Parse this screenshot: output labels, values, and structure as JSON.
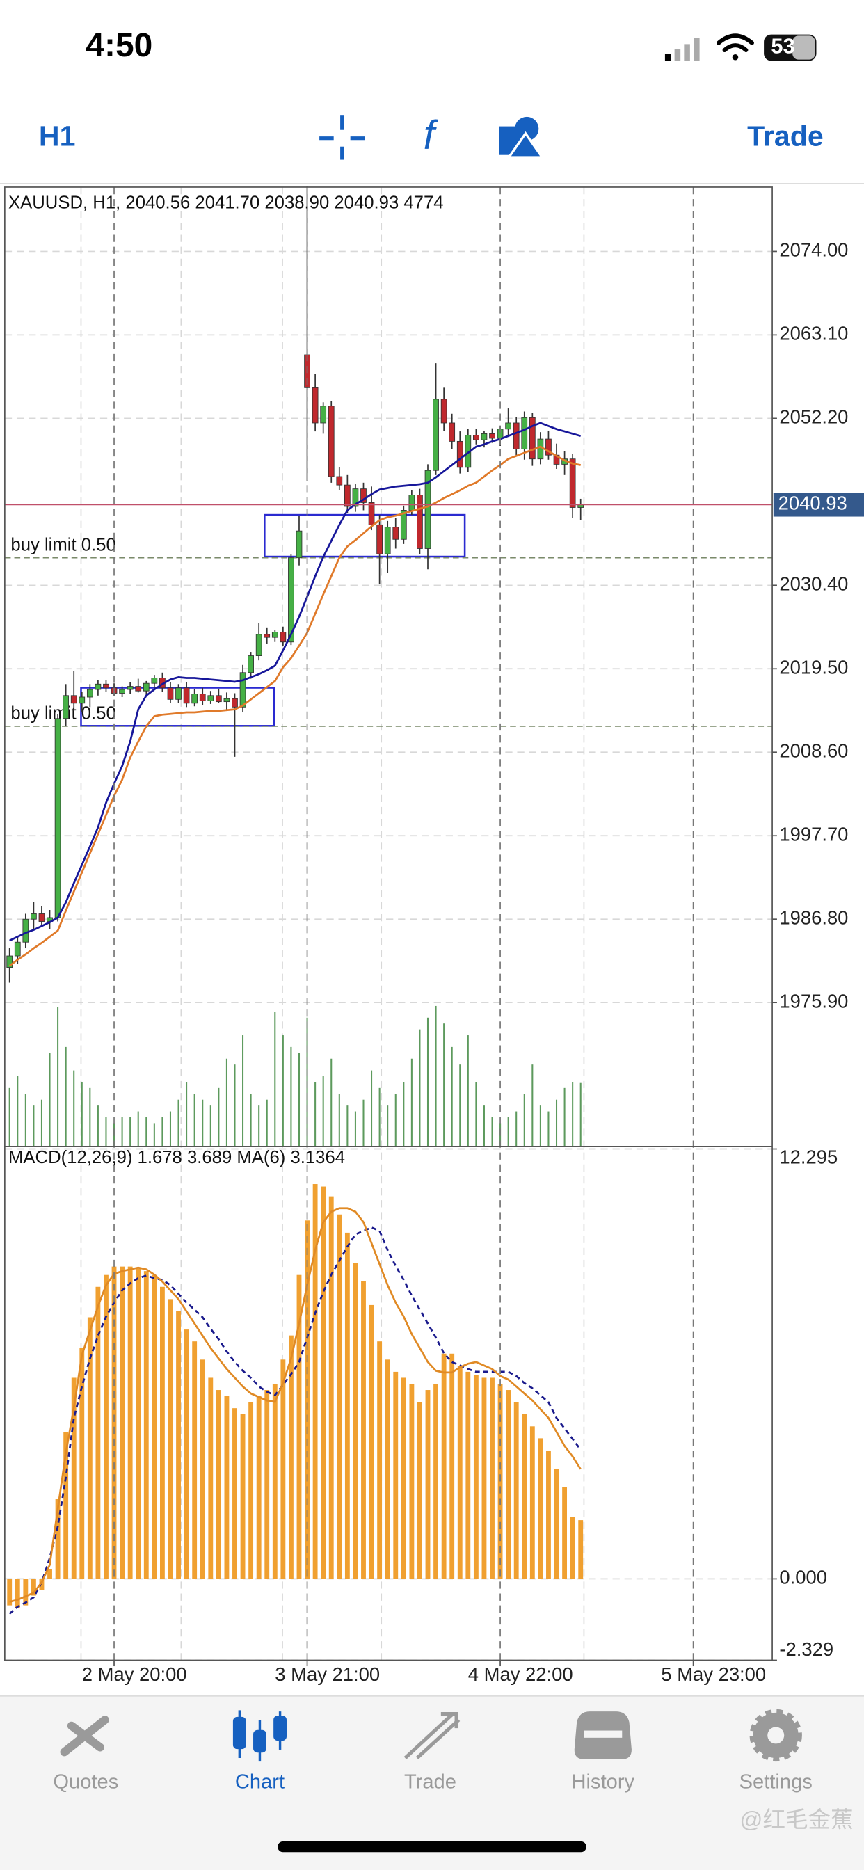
{
  "status_bar": {
    "time": "4:50",
    "battery": "53"
  },
  "toolbar": {
    "timeframe": "H1",
    "trade": "Trade"
  },
  "chart_data": [
    {
      "type": "candlestick",
      "legend": "XAUUSD, H1, 2040.56 2041.70 2038.90 2040.93 4774",
      "up_color": "#45b045",
      "down_color": "#c0282d",
      "volume_color": "#5d9a5d",
      "ylim": [
        1957.1,
        2082.4
      ],
      "yticks": [
        {
          "value": 2074,
          "label": "2074.00"
        },
        {
          "value": 2063.1,
          "label": "2063.10"
        },
        {
          "value": 2052.2,
          "label": "2052.20"
        },
        {
          "value": 2030.4,
          "label": "2030.40"
        },
        {
          "value": 2019.5,
          "label": "2019.50"
        },
        {
          "value": 2008.6,
          "label": "2008.60"
        },
        {
          "value": 1997.7,
          "label": "1997.70"
        },
        {
          "value": 1986.8,
          "label": "1986.80"
        },
        {
          "value": 1975.9,
          "label": "1975.90"
        }
      ],
      "grid": true,
      "price_line_color": "#c0506a",
      "price_box_color": "#34598c",
      "open": [
        1980.5,
        1982.0,
        1983.8,
        1986.8,
        1987.5,
        1986.5,
        1987.0,
        2013.0,
        2016.0,
        2015.0,
        2015.8,
        2016.8,
        2017.5,
        2017.0,
        2016.3,
        2016.8,
        2017.2,
        2016.6,
        2017.6,
        2018.3,
        2017.0,
        2015.5,
        2017.0,
        2015.0,
        2016.2,
        2015.3,
        2016.0,
        2015.2,
        2015.6,
        2014.5,
        2019.0,
        2021.2,
        2024.0,
        2023.6,
        2024.3,
        2023.0,
        2034.0,
        2060.5,
        2056.2,
        2051.6,
        2053.8,
        2044.6,
        2043.5,
        2040.7,
        2043.0,
        2041.2,
        2038.3,
        2034.5,
        2038.0,
        2036.4,
        2040.2,
        2042.2,
        2035.2,
        2045.4,
        2054.7,
        2051.6,
        2049.2,
        2045.8,
        2050.0,
        2049.4,
        2050.2,
        2049.6,
        2050.8,
        2051.6,
        2048.2,
        2052.3,
        2046.9,
        2049.5,
        2047.4,
        2046.2,
        2046.9,
        2040.56,
        null,
        null,
        null,
        null,
        null,
        null,
        null,
        null,
        null,
        null,
        null,
        null,
        null,
        null
      ],
      "high": [
        1983.0,
        1984.5,
        1987.5,
        1989.0,
        1988.5,
        1988.0,
        2013.6,
        2017.5,
        2019.2,
        2016.5,
        2017.5,
        2018.0,
        2018.0,
        2017.6,
        2017.2,
        2017.8,
        2018.2,
        2017.9,
        2018.7,
        2019.0,
        2017.8,
        2017.5,
        2017.8,
        2016.8,
        2017.0,
        2016.6,
        2016.9,
        2016.4,
        2016.3,
        2020.0,
        2021.7,
        2025.5,
        2024.9,
        2024.6,
        2025.0,
        2034.5,
        2039.5,
        2082.5,
        2058.0,
        2054.3,
        2054.5,
        2045.8,
        2044.8,
        2043.6,
        2043.8,
        2043.3,
        2039.6,
        2038.8,
        2039.2,
        2040.8,
        2042.8,
        2043.0,
        2046.2,
        2059.4,
        2056.2,
        2052.8,
        2050.5,
        2050.8,
        2050.8,
        2050.6,
        2050.9,
        2051.2,
        2053.5,
        2052.4,
        2053.1,
        2052.9,
        2050.4,
        2050.6,
        2048.9,
        2047.9,
        2047.6,
        2041.7,
        null,
        null,
        null,
        null,
        null,
        null,
        null,
        null,
        null,
        null,
        null,
        null,
        null,
        null
      ],
      "low": [
        1978.5,
        1981.0,
        1983.0,
        1985.5,
        1985.8,
        1985.5,
        1986.5,
        2012.0,
        2014.0,
        2013.8,
        2014.5,
        2016.0,
        2016.5,
        2016.0,
        2015.8,
        2016.2,
        2016.4,
        2016.0,
        2017.0,
        2016.5,
        2015.0,
        2015.0,
        2014.5,
        2014.6,
        2014.8,
        2014.9,
        2015.0,
        2014.2,
        2008.0,
        2013.8,
        2018.2,
        2020.6,
        2022.8,
        2023.0,
        2022.5,
        2022.6,
        2033.0,
        2044.0,
        2050.5,
        2050.2,
        2043.8,
        2042.8,
        2039.8,
        2040.0,
        2040.2,
        2037.6,
        2030.6,
        2032.0,
        2035.2,
        2035.8,
        2039.6,
        2034.5,
        2032.5,
        2044.8,
        2050.6,
        2048.2,
        2045.0,
        2045.2,
        2048.8,
        2048.4,
        2049.0,
        2048.6,
        2050.0,
        2047.4,
        2046.8,
        2046.0,
        2046.2,
        2046.8,
        2045.6,
        2044.8,
        2039.2,
        2038.9,
        null,
        null,
        null,
        null,
        null,
        null,
        null,
        null,
        null,
        null,
        null,
        null,
        null,
        null
      ],
      "close": [
        1982.0,
        1983.8,
        1986.8,
        1987.5,
        1986.5,
        1987.0,
        2013.0,
        2016.0,
        2015.0,
        2015.8,
        2016.8,
        2017.5,
        2017.0,
        2016.3,
        2016.8,
        2017.2,
        2016.6,
        2017.6,
        2018.3,
        2017.0,
        2015.5,
        2017.0,
        2015.0,
        2016.2,
        2015.3,
        2016.0,
        2015.2,
        2015.6,
        2014.5,
        2019.0,
        2021.2,
        2024.0,
        2023.6,
        2024.3,
        2023.0,
        2034.0,
        2037.5,
        2056.2,
        2051.6,
        2053.8,
        2044.6,
        2043.5,
        2040.7,
        2043.0,
        2041.2,
        2038.3,
        2034.5,
        2038.0,
        2036.4,
        2040.2,
        2042.2,
        2035.2,
        2045.4,
        2054.7,
        2051.6,
        2049.2,
        2045.8,
        2050.0,
        2049.4,
        2050.2,
        2049.6,
        2050.8,
        2051.6,
        2048.2,
        2052.3,
        2046.9,
        2049.5,
        2047.4,
        2046.2,
        2046.9,
        2040.56,
        2040.93,
        null,
        null,
        null,
        null,
        null,
        null,
        null,
        null,
        null,
        null,
        null,
        null,
        null,
        null
      ],
      "volume": [
        4400,
        5280,
        3960,
        3080,
        3520,
        7040,
        10470,
        7480,
        5720,
        4840,
        4400,
        3080,
        2200,
        1760,
        2200,
        2200,
        2640,
        2200,
        1760,
        2200,
        2640,
        3520,
        4840,
        3960,
        3520,
        3080,
        4400,
        6600,
        6160,
        8360,
        3960,
        3080,
        3520,
        10120,
        8360,
        7480,
        7040,
        9680,
        4840,
        5280,
        6600,
        3960,
        3080,
        2640,
        3520,
        5720,
        4400,
        3080,
        3960,
        4840,
        6600,
        8800,
        9680,
        10560,
        9240,
        7480,
        6160,
        8360,
        4840,
        3080,
        2200,
        1760,
        2200,
        2640,
        3960,
        6160,
        3080,
        2640,
        3520,
        4400,
        4840,
        4774,
        null,
        null,
        null,
        null,
        null,
        null,
        null,
        null,
        null,
        null,
        null,
        null,
        null,
        null
      ],
      "series": [
        {
          "color": "#17179a",
          "values": [
            1984.0,
            1984.5,
            1985.0,
            1985.4,
            1985.9,
            1986.4,
            1987.0,
            1989.0,
            1991.5,
            1993.9,
            1996.3,
            1998.8,
            2002.0,
            2004.5,
            2006.8,
            2010.0,
            2014.2,
            2016.0,
            2016.8,
            2017.5,
            2018.1,
            2018.4,
            2018.3,
            2018.3,
            2018.2,
            2018.1,
            2018.0,
            2017.9,
            2017.8,
            2018.0,
            2018.4,
            2018.8,
            2019.3,
            2019.9,
            2021.9,
            2024.0,
            2026.3,
            2028.9,
            2031.6,
            2034.1,
            2036.2,
            2038.3,
            2040.2,
            2041.0,
            2041.6,
            2042.3,
            2042.9,
            2043.1,
            2043.3,
            2043.4,
            2043.5,
            2043.6,
            2043.8,
            2044.5,
            2045.3,
            2046.1,
            2046.9,
            2047.7,
            2048.5,
            2048.8,
            2049.2,
            2049.5,
            2049.9,
            2050.3,
            2050.7,
            2051.2,
            2051.6,
            2051.2,
            2050.8,
            2050.5,
            2050.2,
            2049.9,
            null,
            null,
            null,
            null,
            null,
            null,
            null,
            null,
            null,
            null,
            null,
            null,
            null,
            null
          ]
        },
        {
          "color": "#e07a2a",
          "values": [
            1980.7,
            1981.5,
            1982.2,
            1983.0,
            1983.7,
            1984.5,
            1985.3,
            1987.9,
            1990.4,
            1992.9,
            1995.4,
            1997.9,
            2000.4,
            2002.9,
            2005.0,
            2007.9,
            2010.0,
            2012.0,
            2013.3,
            2013.5,
            2013.6,
            2013.7,
            2013.8,
            2013.8,
            2013.9,
            2014.0,
            2014.0,
            2014.1,
            2014.2,
            2014.7,
            2015.5,
            2016.3,
            2017.1,
            2017.9,
            2019.7,
            2020.9,
            2022.5,
            2024.2,
            2026.7,
            2029.2,
            2031.6,
            2034.0,
            2035.5,
            2036.3,
            2037.2,
            2038.1,
            2038.9,
            2039.3,
            2039.5,
            2039.8,
            2040.1,
            2040.4,
            2040.7,
            2041.2,
            2041.8,
            2042.3,
            2042.8,
            2043.4,
            2043.8,
            2044.6,
            2045.4,
            2046.1,
            2046.9,
            2047.3,
            2047.7,
            2048.1,
            2048.5,
            2047.9,
            2047.3,
            2046.7,
            2046.3,
            2046.1,
            null,
            null,
            null,
            null,
            null,
            null,
            null,
            null,
            null,
            null,
            null,
            null,
            null,
            null
          ]
        }
      ],
      "orders": [
        {
          "label": "buy limit 0.50",
          "value": 2034.0
        },
        {
          "label": "buy limit 0.50",
          "value": 2012.0
        }
      ]
    },
    {
      "type": "macd",
      "legend": "MACD(12,26,9) 1.678 3.689 MA(6) 3.1364",
      "color": "#f0a030",
      "ylim": [
        -2.329,
        12.295
      ],
      "yticks": [
        12.295,
        {
          "value": 0,
          "label": "0.000"
        },
        -2.329
      ],
      "categories": [
        null,
        null,
        null,
        null,
        null,
        null,
        null,
        null,
        null,
        null,
        null,
        null,
        null,
        "2 May 20:00",
        null,
        null,
        null,
        null,
        null,
        null,
        null,
        null,
        null,
        null,
        null,
        null,
        null,
        null,
        null,
        null,
        null,
        null,
        null,
        null,
        null,
        null,
        null,
        "3 May 21:00",
        null,
        null,
        null,
        null,
        null,
        null,
        null,
        null,
        null,
        null,
        null,
        null,
        null,
        null,
        null,
        null,
        null,
        null,
        null,
        null,
        null,
        null,
        null,
        "4 May 22:00",
        null,
        null,
        null,
        null,
        null,
        null,
        null,
        null,
        null,
        null,
        null,
        null,
        null,
        null,
        null,
        null,
        null,
        null,
        null,
        null,
        null,
        null,
        null,
        "5 May 23:00"
      ],
      "values": [
        -0.76,
        -0.83,
        -0.76,
        -0.48,
        -0.31,
        0.28,
        2.29,
        4.19,
        5.75,
        6.61,
        7.48,
        8.35,
        8.69,
        8.93,
        8.93,
        8.93,
        8.87,
        8.8,
        8.69,
        8.35,
        8.0,
        7.65,
        7.13,
        6.79,
        6.27,
        5.75,
        5.4,
        5.23,
        4.88,
        4.71,
        5.06,
        5.23,
        5.4,
        5.58,
        6.27,
        6.96,
        8.69,
        10.25,
        11.29,
        11.22,
        10.94,
        10.42,
        9.9,
        9.04,
        8.52,
        7.83,
        6.79,
        6.27,
        5.92,
        5.75,
        5.58,
        5.06,
        5.4,
        5.58,
        6.44,
        6.44,
        6.09,
        5.92,
        5.82,
        5.75,
        5.75,
        5.58,
        5.4,
        5.06,
        4.71,
        4.36,
        4.02,
        3.67,
        3.15,
        2.63,
        1.77,
        1.678,
        null,
        null,
        null,
        null,
        null,
        null,
        null,
        null,
        null,
        null,
        null,
        null,
        null,
        null
      ],
      "series": [
        {
          "color": "#1a1a8c",
          "style": "dashed",
          "values": [
            -1.0,
            -0.8,
            -0.68,
            -0.53,
            -0.1,
            0.6,
            1.5,
            2.9,
            4.6,
            5.5,
            6.3,
            6.95,
            7.5,
            7.9,
            8.25,
            8.45,
            8.6,
            8.67,
            8.6,
            8.55,
            8.4,
            8.15,
            7.9,
            7.7,
            7.48,
            7.15,
            6.85,
            6.5,
            6.2,
            5.95,
            5.75,
            5.5,
            5.35,
            5.25,
            5.55,
            5.85,
            6.2,
            6.9,
            7.6,
            8.2,
            8.7,
            9.1,
            9.5,
            9.85,
            9.95,
            10.05,
            9.95,
            9.4,
            8.95,
            8.55,
            8.1,
            7.7,
            7.3,
            6.9,
            6.45,
            6.2,
            6.1,
            6.0,
            5.92,
            5.92,
            5.92,
            5.92,
            5.92,
            5.8,
            5.6,
            5.45,
            5.25,
            5.05,
            4.6,
            4.3,
            4.0,
            3.689,
            null,
            null,
            null,
            null,
            null,
            null,
            null,
            null,
            null,
            null,
            null,
            null,
            null,
            null
          ]
        },
        {
          "color": "#e08a25",
          "style": "solid",
          "values": [
            -0.66,
            -0.6,
            -0.5,
            -0.4,
            -0.1,
            0.4,
            2.0,
            3.6,
            4.9,
            6.4,
            7.1,
            7.8,
            8.4,
            8.72,
            8.8,
            8.85,
            8.9,
            8.85,
            8.7,
            8.5,
            8.25,
            8.0,
            7.65,
            7.3,
            6.95,
            6.6,
            6.3,
            6.0,
            5.75,
            5.5,
            5.3,
            5.2,
            5.1,
            5.06,
            5.6,
            6.3,
            7.3,
            8.4,
            9.4,
            10.2,
            10.5,
            10.6,
            10.6,
            10.5,
            10.2,
            9.6,
            9.0,
            8.4,
            7.9,
            7.5,
            7.0,
            6.6,
            6.2,
            5.95,
            5.9,
            5.9,
            6.05,
            6.15,
            6.2,
            6.1,
            6.0,
            5.8,
            5.7,
            5.5,
            5.3,
            5.1,
            4.85,
            4.6,
            4.2,
            3.8,
            3.5,
            3.1364,
            null,
            null,
            null,
            null,
            null,
            null,
            null,
            null,
            null,
            null,
            null,
            null,
            null,
            null
          ]
        }
      ]
    }
  ],
  "tabs": [
    {
      "label": "Quotes"
    },
    {
      "label": "Chart"
    },
    {
      "label": "Trade"
    },
    {
      "label": "History"
    },
    {
      "label": "Settings"
    }
  ],
  "watermark": "@红毛金蕉"
}
